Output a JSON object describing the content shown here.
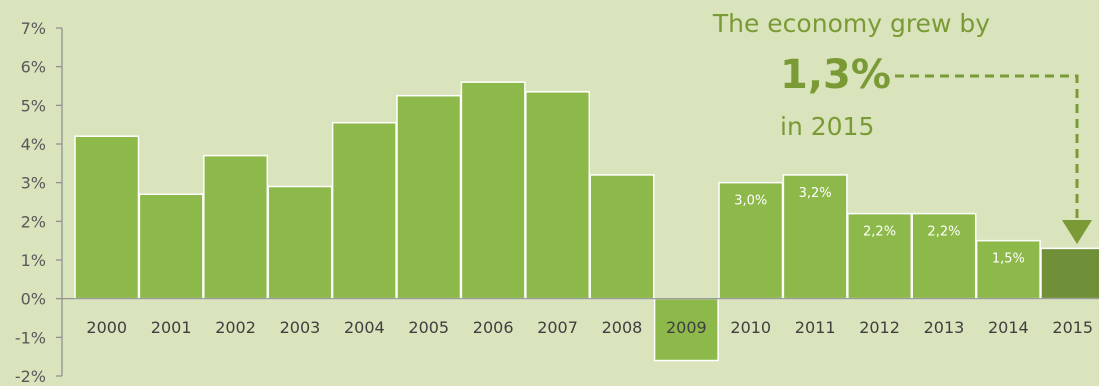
{
  "colors": {
    "background": "#d9e4bd",
    "bar": "#8db84a",
    "bar_highlight": "#6f8f38",
    "axis": "#8c8c8c",
    "annotation": "#7a9a35"
  },
  "annotation": {
    "line1": "The economy grew by",
    "value": "1,3%",
    "line3": "in 2015"
  },
  "chart_data": {
    "type": "bar",
    "categories": [
      "2000",
      "2001",
      "2002",
      "2003",
      "2004",
      "2005",
      "2006",
      "2007",
      "2008",
      "2009",
      "2010",
      "2011",
      "2012",
      "2013",
      "2014",
      "2015"
    ],
    "values": [
      4.2,
      2.7,
      3.7,
      2.9,
      4.55,
      5.25,
      5.6,
      5.35,
      3.2,
      -1.6,
      3.0,
      3.2,
      2.2,
      2.2,
      1.5,
      1.3
    ],
    "data_labels": [
      "",
      "",
      "",
      "",
      "",
      "",
      "",
      "",
      "",
      "",
      "3,0%",
      "3,2%",
      "2,2%",
      "2,2%",
      "1,5%",
      ""
    ],
    "highlight": [
      "2009",
      "2015"
    ],
    "yticks": [
      "7%",
      "6%",
      "5%",
      "4%",
      "3%",
      "2%",
      "1%",
      "0%",
      "-1%",
      "-2%"
    ],
    "ylim": [
      -2,
      7
    ],
    "title": "",
    "xlabel": "",
    "ylabel": "",
    "grid": false,
    "legend": "none"
  }
}
